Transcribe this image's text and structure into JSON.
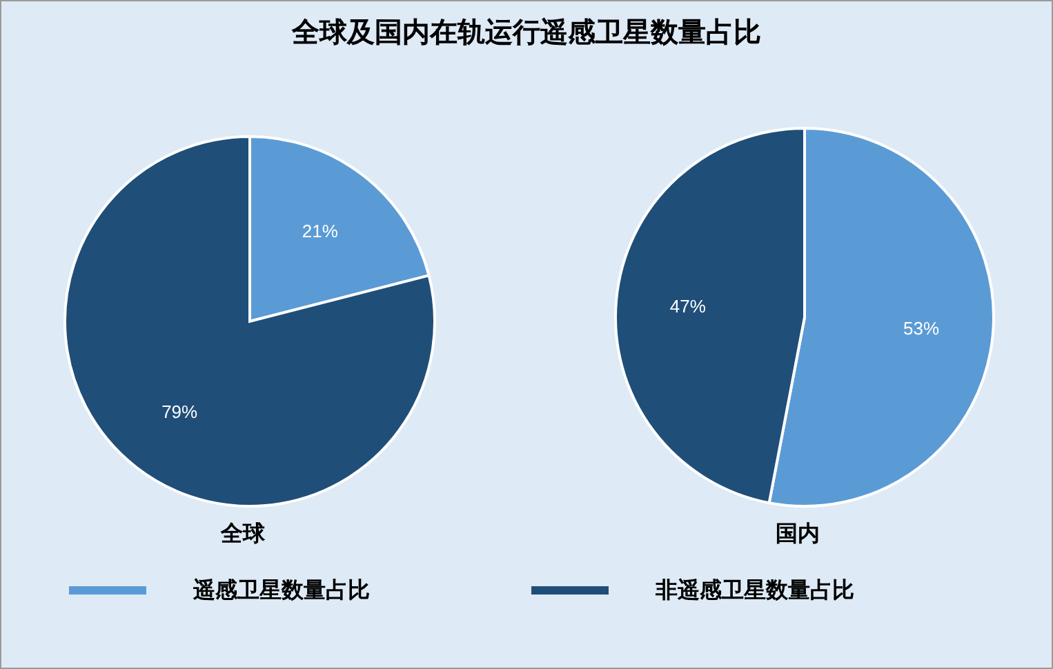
{
  "chart_data": {
    "type": "pie",
    "title": "全球及国内在轨运行遥感卫星数量占比",
    "categories": [
      "遥感卫星数量占比",
      "非遥感卫星数量占比"
    ],
    "colors": [
      "#5b9bd5",
      "#1f4e79"
    ],
    "legend": "bottom",
    "series": [
      {
        "name": "全球",
        "values": [
          21,
          79
        ],
        "value_labels": [
          "21%",
          "79%"
        ]
      },
      {
        "name": "国内",
        "values": [
          53,
          47
        ],
        "value_labels": [
          "53%",
          "47%"
        ]
      }
    ]
  }
}
